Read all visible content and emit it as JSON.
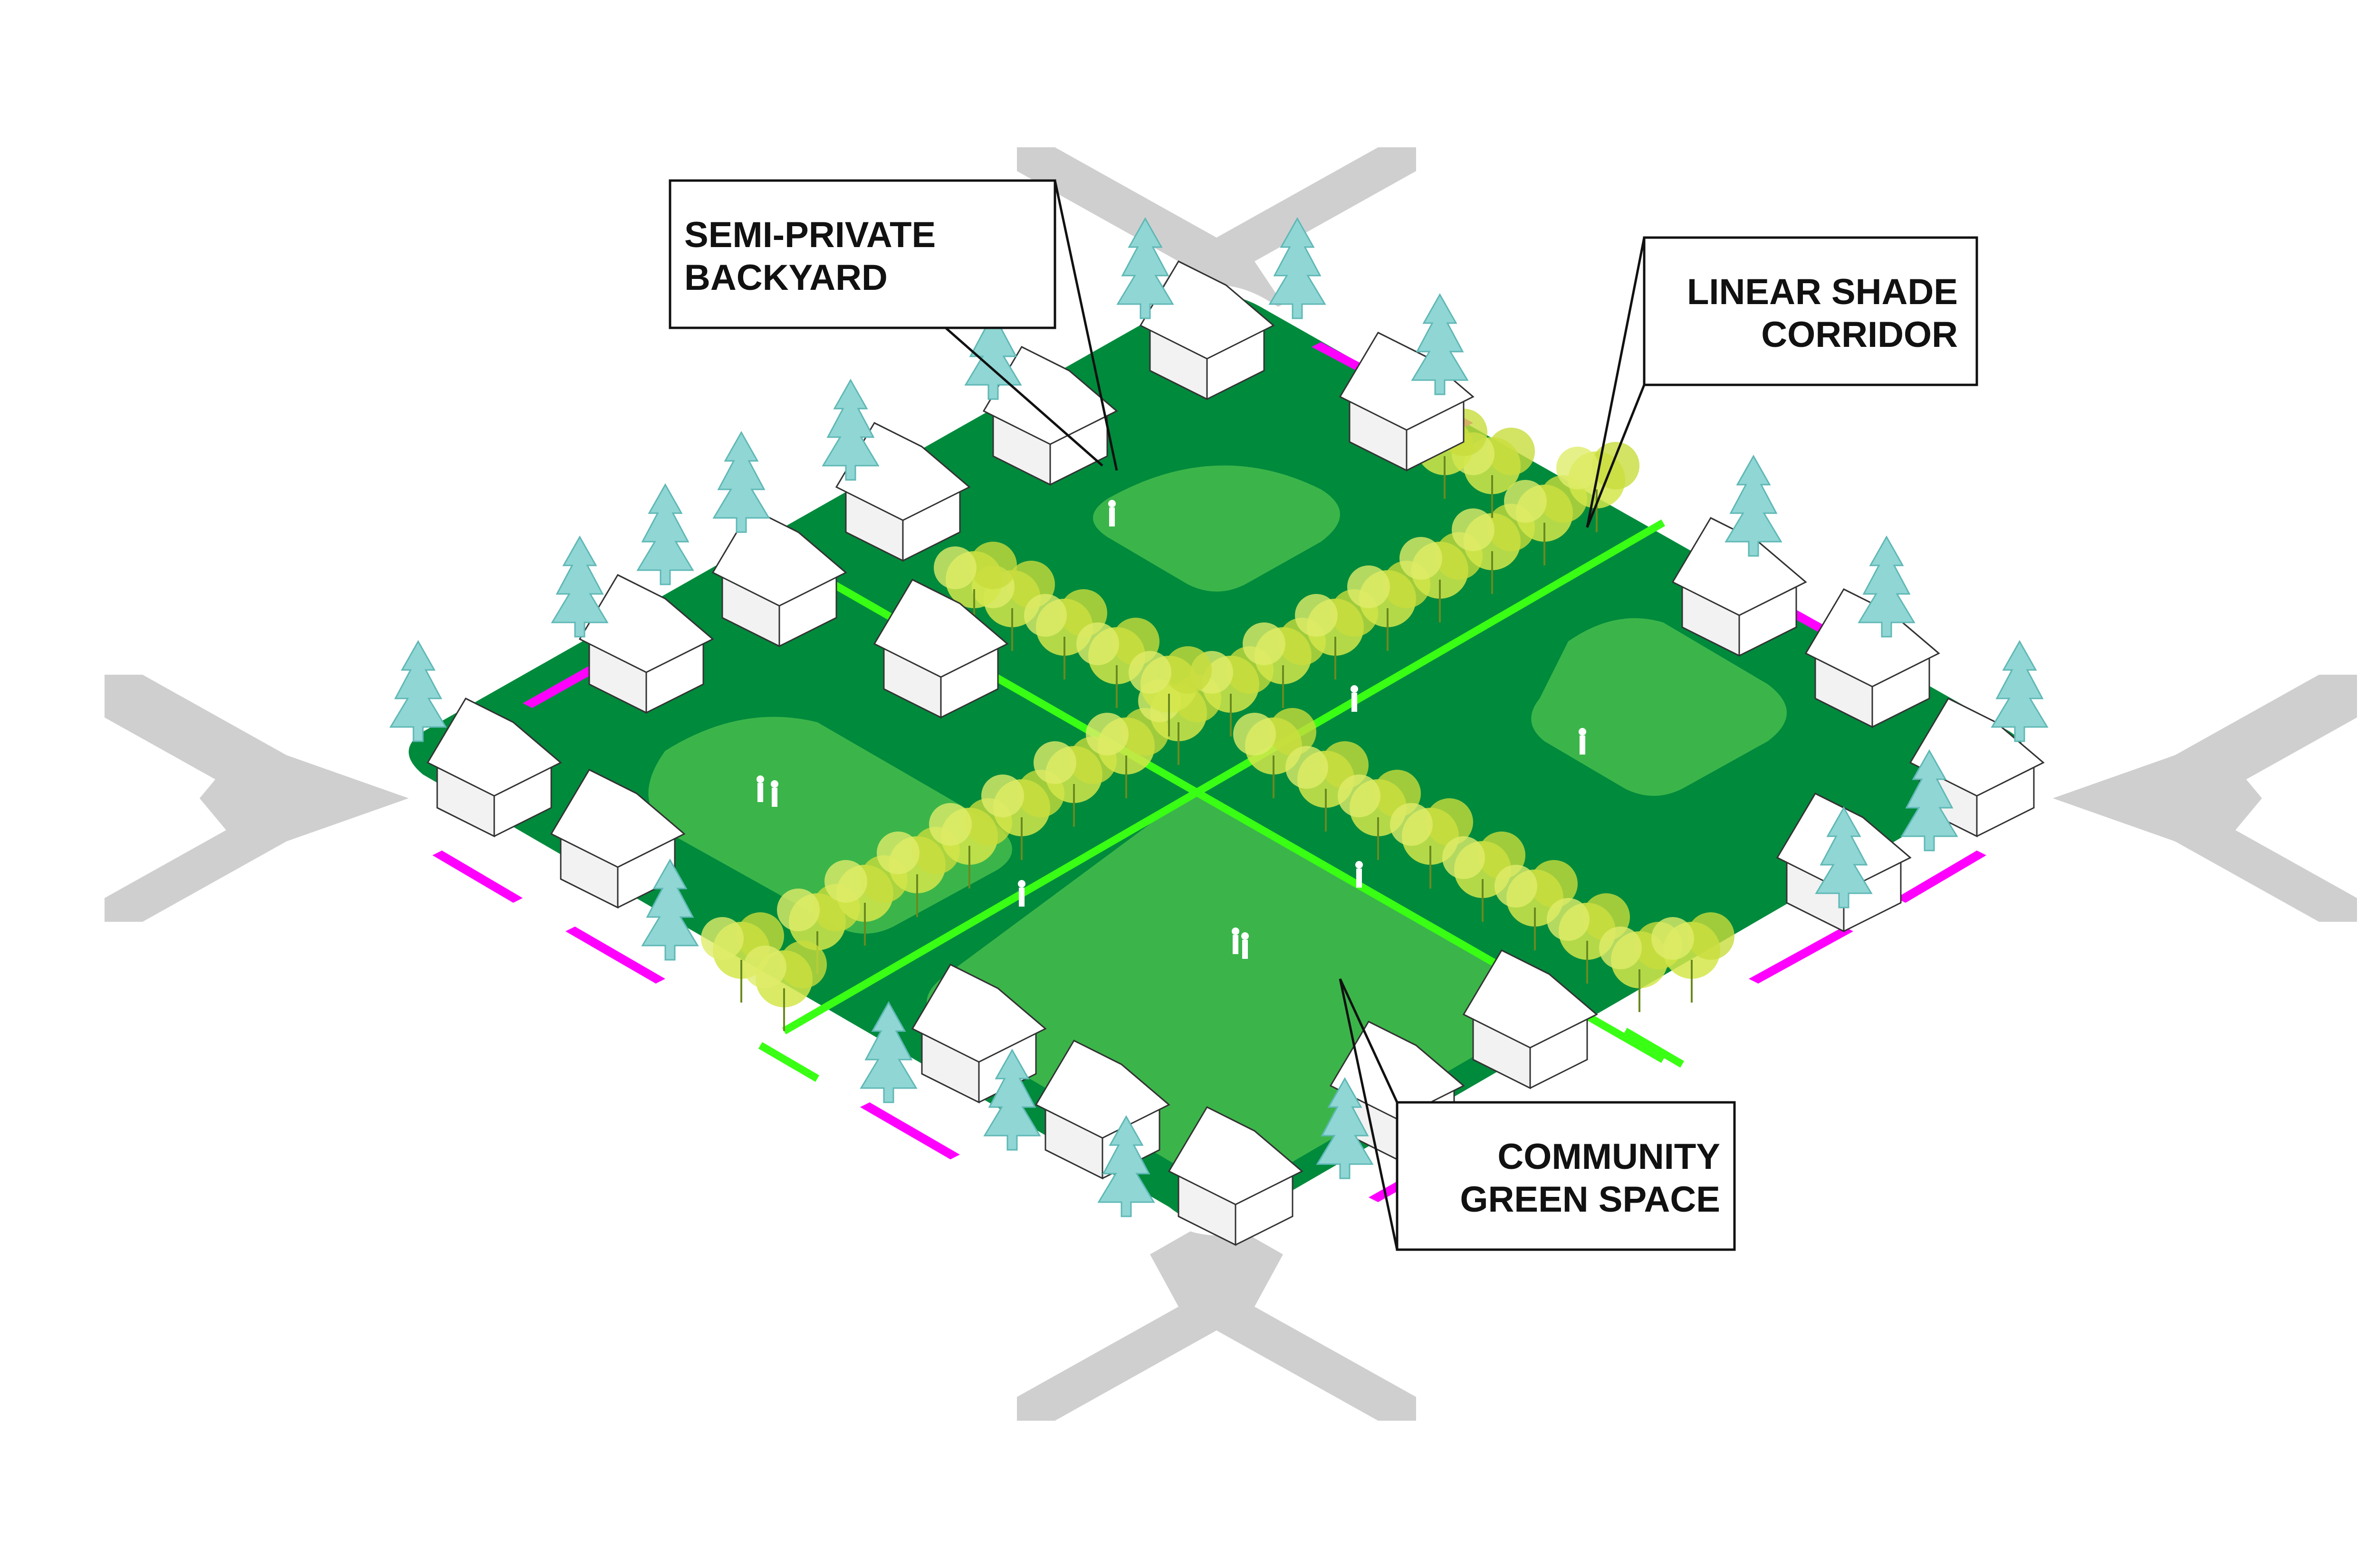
{
  "callouts": {
    "backyard": {
      "line1": "SEMI-PRIVATE",
      "line2": "BACKYARD"
    },
    "corridor": {
      "line1": "LINEAR SHADE",
      "line2": "CORRIDOR"
    },
    "green": {
      "line1": "COMMUNITY",
      "line2": "GREEN SPACE"
    }
  },
  "colors": {
    "road": "#cfcfcf",
    "block_dark_green": "#008a3c",
    "lawn_green": "#3bb54a",
    "path_bright_green": "#39ff14",
    "canopy_yellow": "#d4e64a",
    "conifer_teal": "#8fd6d4",
    "parking_magenta": "#ff00ff",
    "house_white": "#ffffff"
  }
}
